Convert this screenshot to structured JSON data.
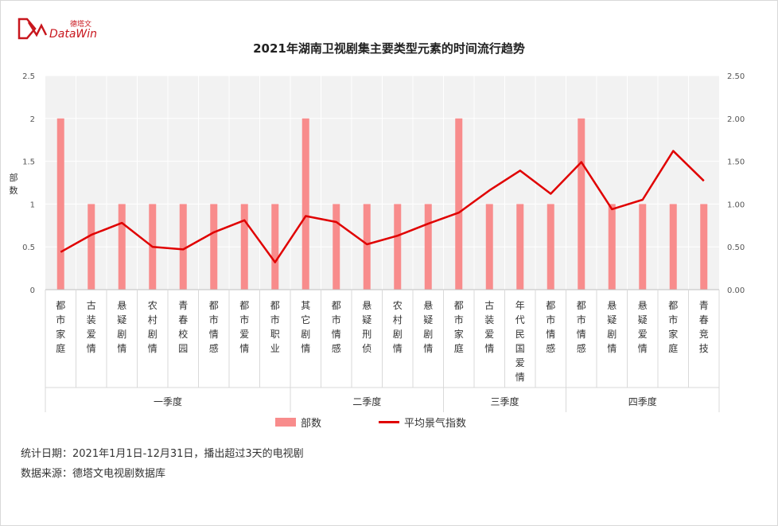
{
  "logo": {
    "cn": "德塔文",
    "en": "DataWin"
  },
  "chart_data": {
    "type": "bar+line",
    "title": "2021年湖南卫视剧集主要类型元素的时间流行趋势",
    "ylabel_left": "部数",
    "ylim_left": [
      0,
      2.5
    ],
    "yticks_left": [
      "0",
      "0.5",
      "1",
      "1.5",
      "2",
      "2.5"
    ],
    "ylim_right": [
      0,
      2.5
    ],
    "yticks_right": [
      "0.00",
      "0.50",
      "1.00",
      "1.50",
      "2.00",
      "2.50"
    ],
    "grid": true,
    "legend_position": "bottom",
    "categories": [
      "都市家庭",
      "古装爱情",
      "悬疑剧情",
      "农村剧情",
      "青春校园",
      "都市情感",
      "都市爱情",
      "都市职业",
      "其它剧情",
      "都市情感",
      "悬疑刑侦",
      "农村剧情",
      "悬疑剧情",
      "都市家庭",
      "古装爱情",
      "年代民国爱情",
      "都市情感",
      "都市情感",
      "悬疑剧情",
      "悬疑爱情",
      "都市家庭",
      "青春竞技"
    ],
    "quarters": [
      {
        "label": "一季度",
        "count": 8
      },
      {
        "label": "二季度",
        "count": 5
      },
      {
        "label": "三季度",
        "count": 4
      },
      {
        "label": "四季度",
        "count": 5
      }
    ],
    "series": [
      {
        "name": "部数",
        "type": "bar",
        "color": "#f88c8c",
        "values": [
          2,
          1,
          1,
          1,
          1,
          1,
          1,
          1,
          2,
          1,
          1,
          1,
          1,
          2,
          1,
          1,
          1,
          2,
          1,
          1,
          1,
          1
        ]
      },
      {
        "name": "平均景气指数",
        "type": "line",
        "color": "#e00000",
        "values": [
          0.44,
          0.64,
          0.78,
          0.5,
          0.47,
          0.67,
          0.81,
          0.32,
          0.86,
          0.79,
          0.53,
          0.63,
          0.77,
          0.9,
          1.16,
          1.39,
          1.12,
          1.49,
          0.94,
          1.05,
          1.62,
          1.27
        ]
      }
    ]
  },
  "notes": {
    "stat_date": "统计日期：2021年1月1日-12月31日，播出超过3天的电视剧",
    "source": "数据来源：德塔文电视剧数据库"
  }
}
